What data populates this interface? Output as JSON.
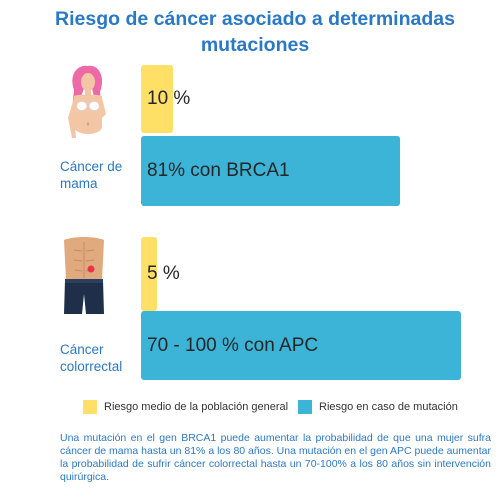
{
  "title": "Riesgo de cáncer asociado a determinadas mutaciones",
  "chart_data": {
    "type": "bar",
    "orientation": "horizontal",
    "title": "Riesgo de cáncer asociado a determinadas mutaciones",
    "xlim": [
      0,
      100
    ],
    "groups": [
      {
        "category": "Cáncer de mama",
        "icon": "woman-torso-icon",
        "bars": [
          {
            "series": "Riesgo medio de la población general",
            "value": 10,
            "label": "10 %"
          },
          {
            "series": "Riesgo en caso de mutación",
            "value": 81,
            "label": "81% con BRCA1"
          }
        ]
      },
      {
        "category": "Cáncer colorrectal",
        "icon": "abdomen-icon",
        "bars": [
          {
            "series": "Riesgo medio de la población general",
            "value": 5,
            "label": "5 %"
          },
          {
            "series": "Riesgo en caso de mutación",
            "value": 100,
            "label": "70 - 100 % con APC"
          }
        ]
      }
    ],
    "series": [
      {
        "name": "Riesgo medio de la población general",
        "color": "#ffe066"
      },
      {
        "name": "Riesgo en caso de mutación",
        "color": "#3bb4d8"
      }
    ],
    "legend_position": "bottom"
  },
  "categories": {
    "breast_line1": "Cáncer de",
    "breast_line2": "mama",
    "colorectal_line1": "Cáncer",
    "colorectal_line2": "colorrectal"
  },
  "legend": {
    "general": "Riesgo medio de la población general",
    "mutation": "Riesgo en caso de mutación"
  },
  "note": "Una mutación en el gen BRCA1 puede aumentar la probabilidad de que una mujer sufra cáncer de mama hasta un 81% a los 80 años. Una mutación en el gen APC puede aumentar la probabilidad de sufrir cáncer colorrectal hasta un 70-100% a los 80 años sin intervención quirúrgica."
}
